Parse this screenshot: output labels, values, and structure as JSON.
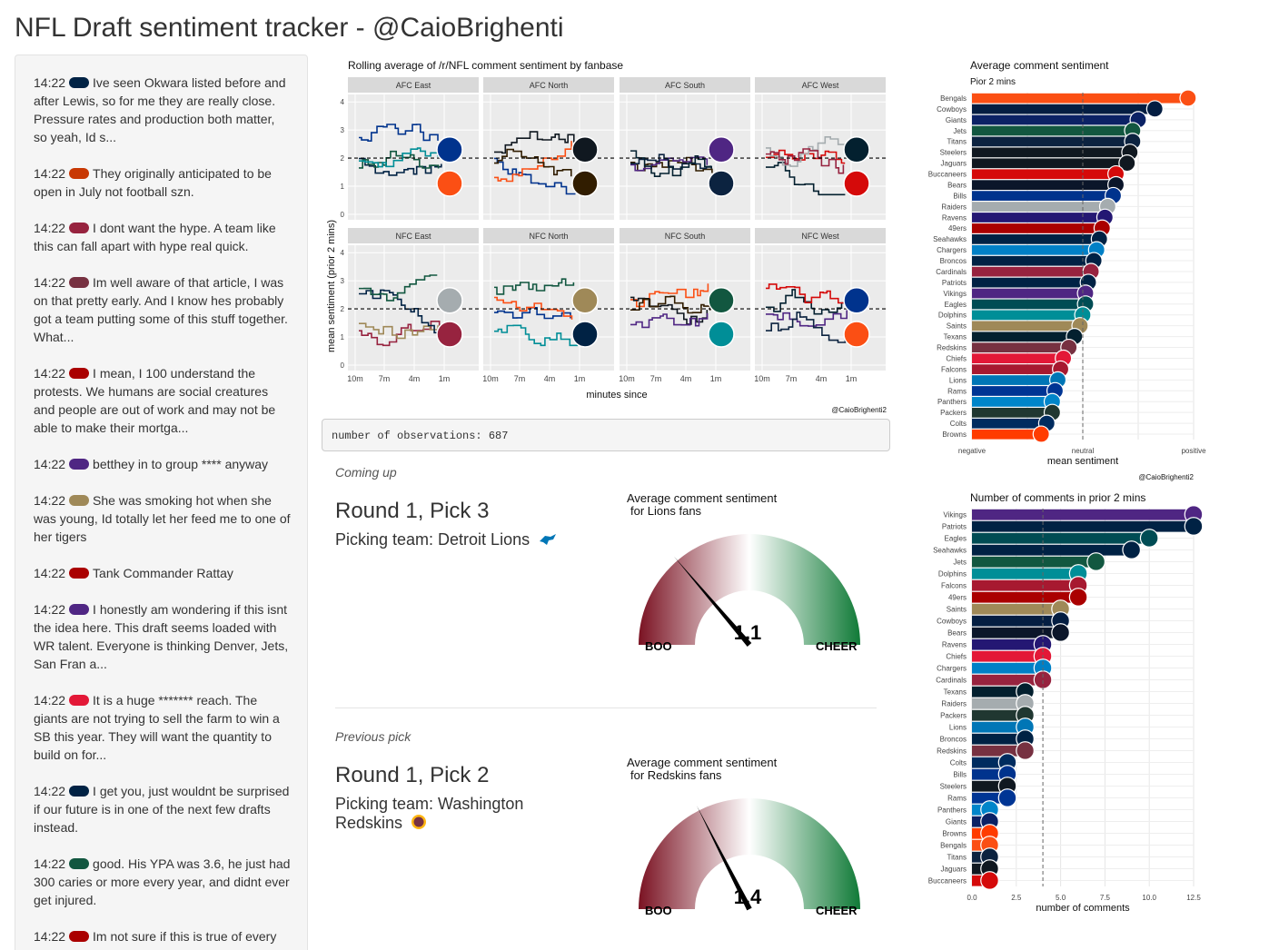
{
  "page": {
    "title": "NFL Draft sentiment tracker - @CaioBrighenti"
  },
  "comments": [
    {
      "time": "14:22",
      "team": "Seahawks",
      "color": "#002244",
      "text": "Ive seen Okwara listed before and after Lewis, so for me they are really close. Pressure rates and production both matter, so yeah, Id s..."
    },
    {
      "time": "14:22",
      "team": "Bears",
      "color": "#C83803",
      "text": "They originally anticipated to be open in July not football szn."
    },
    {
      "time": "14:22",
      "team": "Cardinals",
      "color": "#97233F",
      "text": "I dont want the hype. A team like this can fall apart with hype real quick."
    },
    {
      "time": "14:22",
      "team": "Redskins",
      "color": "#773141",
      "text": "Im well aware of that article, I was on that pretty early. And I know hes probably got a team putting some of this stuff together. What..."
    },
    {
      "time": "14:22",
      "team": "49ers",
      "color": "#AA0000",
      "text": "I mean, I 100 understand the protests. We humans are social creatures and people are out of work and may not be able to make their mortga..."
    },
    {
      "time": "14:22",
      "team": "Vikings",
      "color": "#4F2683",
      "text": "betthey in to group **** anyway"
    },
    {
      "time": "14:22",
      "team": "Saints",
      "color": "#9F8958",
      "text": "She was smoking hot when she was young, Id totally let her feed me to one of her tigers"
    },
    {
      "time": "14:22",
      "team": "49ers",
      "color": "#AA0000",
      "text": "Tank Commander Rattay"
    },
    {
      "time": "14:22",
      "team": "Vikings",
      "color": "#4F2683",
      "text": "I honestly am wondering if this isnt the idea here. This draft seems loaded with WR talent. Everyone is thinking Denver, Jets, San Fran a..."
    },
    {
      "time": "14:22",
      "team": "Chiefs",
      "color": "#E31837",
      "text": "It is a huge ******* reach. The giants are not trying to sell the farm to win a SB this year. They will want the quantity to build on for..."
    },
    {
      "time": "14:22",
      "team": "Patriots",
      "color": "#002244",
      "text": "I get you, just wouldnt be surprised if our future is in one of the next few drafts instead."
    },
    {
      "time": "14:22",
      "team": "Jets",
      "color": "#125740",
      "text": "good. His YPA was 3.6, he just had 300 caries or more every year, and didnt ever get injured."
    },
    {
      "time": "14:22",
      "team": "49ers",
      "color": "#AA0000",
      "text": "Im not sure if this is true of every"
    }
  ],
  "rolling_chart": {
    "title": "Rolling average of /r/NFL comment sentiment by fanbase",
    "ylabel": "mean sentiment (prior 2 mins)",
    "xlabel": "minutes since",
    "credit": "@CaioBrighenti2",
    "x_ticks": [
      "10m",
      "7m",
      "4m",
      "1m"
    ],
    "y_ticks": [
      "0",
      "1",
      "2",
      "3",
      "4"
    ],
    "divisions": [
      "AFC East",
      "AFC North",
      "AFC South",
      "AFC West",
      "NFC East",
      "NFC North",
      "NFC South",
      "NFC West"
    ],
    "reference_y": 2
  },
  "observations": {
    "text": "number of observations: 687"
  },
  "coming_up": {
    "label": "Coming up",
    "title": "Round 1, Pick 3",
    "team_text": "Picking team: Detroit Lions",
    "team_color": "#0076B6",
    "gauge": {
      "title_line1": "Average comment sentiment",
      "title_line2": "for Lions fans",
      "value": 1.1,
      "value_text": "1.1",
      "min": 0,
      "max": 4,
      "low_label": "BOO",
      "high_label": "CHEER"
    }
  },
  "previous_pick": {
    "label": "Previous pick",
    "title": "Round 1, Pick 2",
    "team_text_line1": "Picking team: Washington",
    "team_text_line2": "Redskins",
    "team_color": "#773141",
    "gauge": {
      "title_line1": "Average comment sentiment",
      "title_line2": "for Redskins fans",
      "value": 1.4,
      "value_text": "1.4",
      "min": 0,
      "max": 4,
      "low_label": "BOO",
      "high_label": "CHEER"
    }
  },
  "chart_data": [
    {
      "type": "bar",
      "title": "Average comment sentiment",
      "subtitle": "Pior 2 mins",
      "xlabel": "mean sentiment",
      "x_tick_labels": [
        "negative",
        "neutral",
        "positive"
      ],
      "credit": "@CaioBrighenti2",
      "reference_value": 2,
      "xlim": [
        0,
        4
      ],
      "categories": [
        "Bengals",
        "Cowboys",
        "Giants",
        "Jets",
        "Titans",
        "Steelers",
        "Jaguars",
        "Buccaneers",
        "Bears",
        "Bills",
        "Raiders",
        "Ravens",
        "49ers",
        "Seahawks",
        "Chargers",
        "Broncos",
        "Cardinals",
        "Patriots",
        "Vikings",
        "Eagles",
        "Dolphins",
        "Saints",
        "Texans",
        "Redskins",
        "Chiefs",
        "Falcons",
        "Lions",
        "Rams",
        "Panthers",
        "Packers",
        "Colts",
        "Browns"
      ],
      "values": [
        3.9,
        3.3,
        3.0,
        2.9,
        2.9,
        2.85,
        2.8,
        2.6,
        2.6,
        2.55,
        2.45,
        2.4,
        2.35,
        2.3,
        2.25,
        2.2,
        2.15,
        2.1,
        2.05,
        2.05,
        2.0,
        1.95,
        1.85,
        1.75,
        1.65,
        1.6,
        1.55,
        1.5,
        1.45,
        1.45,
        1.35,
        1.25
      ],
      "colors": [
        "#FB4F14",
        "#041E42",
        "#0B2265",
        "#125740",
        "#0C2340",
        "#101820",
        "#101820",
        "#D50A0A",
        "#0B162A",
        "#00338D",
        "#A5ACAF",
        "#241773",
        "#AA0000",
        "#002244",
        "#0080C6",
        "#002244",
        "#97233F",
        "#002244",
        "#4F2683",
        "#004C54",
        "#008E97",
        "#9F8958",
        "#03202F",
        "#773141",
        "#E31837",
        "#A71930",
        "#0076B6",
        "#003594",
        "#0085CA",
        "#203731",
        "#002C5F",
        "#FF3C00"
      ]
    },
    {
      "type": "bar",
      "title": "Number of comments in prior 2 mins",
      "xlabel": "number of comments",
      "x_ticks": [
        "0.0",
        "2.5",
        "5.0",
        "7.5",
        "10.0",
        "12.5"
      ],
      "reference_value": 4,
      "xlim": [
        0,
        12.5
      ],
      "categories": [
        "Vikings",
        "Patriots",
        "Eagles",
        "Seahawks",
        "Jets",
        "Dolphins",
        "Falcons",
        "49ers",
        "Saints",
        "Cowboys",
        "Bears",
        "Ravens",
        "Chiefs",
        "Chargers",
        "Cardinals",
        "Texans",
        "Raiders",
        "Packers",
        "Lions",
        "Broncos",
        "Redskins",
        "Colts",
        "Bills",
        "Steelers",
        "Rams",
        "Panthers",
        "Giants",
        "Browns",
        "Bengals",
        "Titans",
        "Jaguars",
        "Buccaneers"
      ],
      "values": [
        12.5,
        12.5,
        10,
        9,
        7,
        6,
        6,
        6,
        5,
        5,
        5,
        4,
        4,
        4,
        4,
        3,
        3,
        3,
        3,
        3,
        3,
        2,
        2,
        2,
        2,
        1,
        1,
        1,
        1,
        1,
        1,
        1
      ],
      "colors": [
        "#4F2683",
        "#002244",
        "#004C54",
        "#002244",
        "#125740",
        "#008E97",
        "#A71930",
        "#AA0000",
        "#9F8958",
        "#041E42",
        "#0B162A",
        "#241773",
        "#E31837",
        "#0080C6",
        "#97233F",
        "#03202F",
        "#A5ACAF",
        "#203731",
        "#0076B6",
        "#002244",
        "#773141",
        "#002C5F",
        "#00338D",
        "#101820",
        "#003594",
        "#0085CA",
        "#0B2265",
        "#FF3C00",
        "#FB4F14",
        "#0C2340",
        "#101820",
        "#D50A0A"
      ]
    }
  ]
}
